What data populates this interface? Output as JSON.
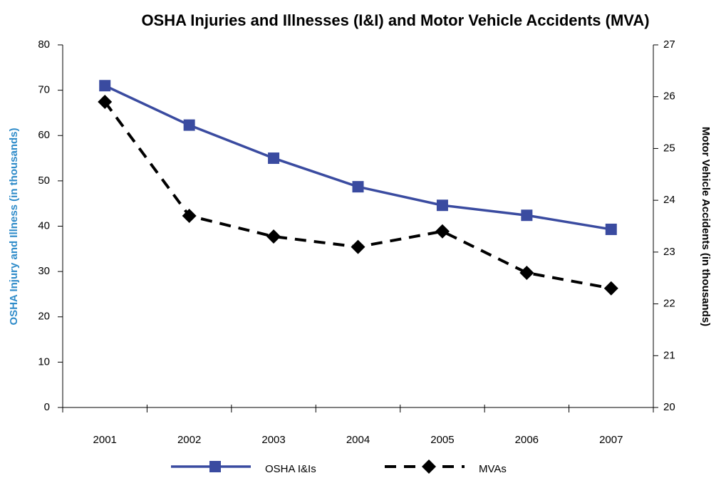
{
  "chart_data": {
    "type": "line",
    "title": "OSHA Injuries and Illnesses (I&I) and Motor Vehicle Accidents (MVA)",
    "y_label": "OSHA Injury and Illness (in thousands)",
    "y2_label": "Motor Vehicle Accidents (in thousands)",
    "categories": [
      "2001",
      "2002",
      "2003",
      "2004",
      "2005",
      "2006",
      "2007"
    ],
    "series": [
      {
        "name": "OSHA I&Is",
        "color": "#3a4ba0",
        "marker": "square",
        "dashed": false,
        "values": [
          71,
          62.3,
          55,
          48.7,
          44.6,
          42.4,
          39.3
        ]
      },
      {
        "name": "MVAs",
        "color": "#000000",
        "marker": "diamond",
        "dashed": true,
        "axis": "y2",
        "values": [
          25.9,
          23.7,
          23.3,
          23.1,
          23.4,
          22.6,
          22.3
        ]
      }
    ],
    "ylim": [
      0,
      80
    ],
    "yticks": [
      0,
      10,
      20,
      30,
      40,
      50,
      60,
      70,
      80
    ],
    "y2lim": [
      20,
      27
    ],
    "y2ticks": [
      20,
      21,
      22,
      23,
      24,
      25,
      26,
      27
    ],
    "grid": false,
    "legend": "bottom"
  }
}
